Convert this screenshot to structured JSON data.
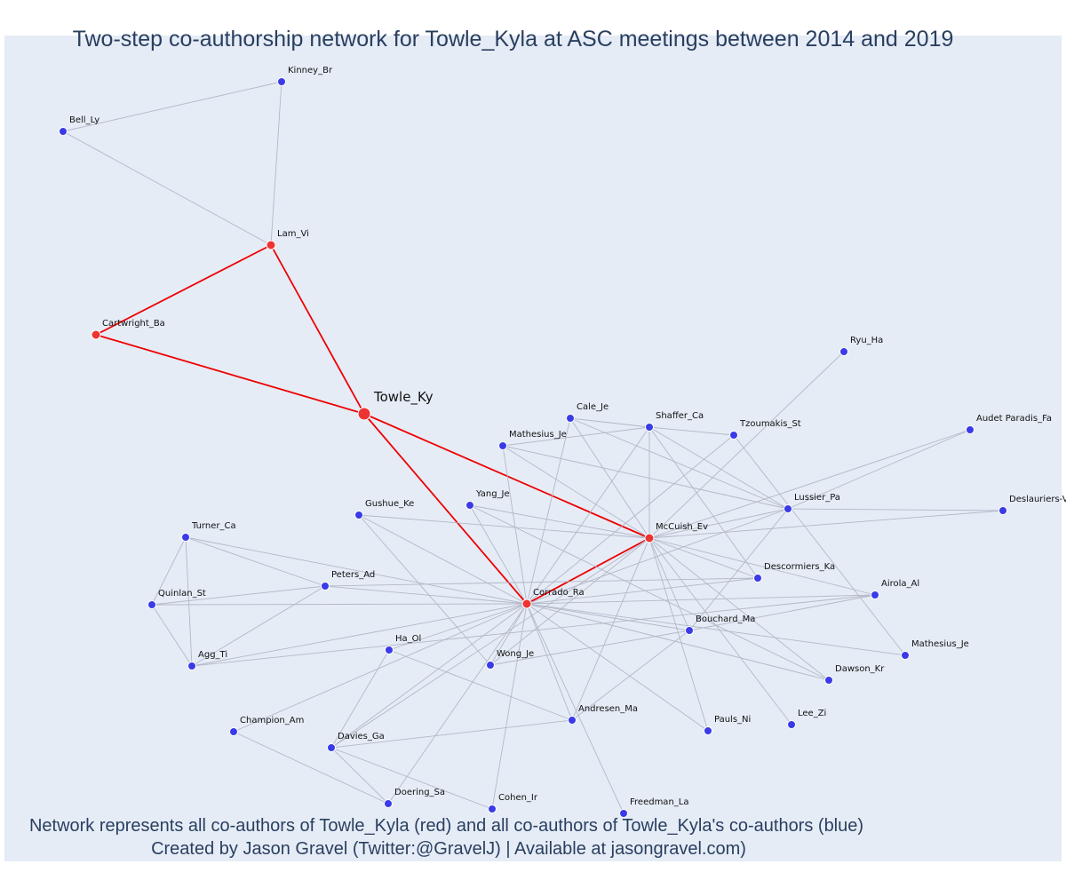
{
  "title": "Two-step co-authorship network for Towle_Kyla at ASC meetings between 2014 and 2019",
  "footer": {
    "line1": "Network represents all co-authors of Towle_Kyla (red) and all co-authors of Towle_Kyla's co-authors (blue)",
    "line2": "Created by Jason Gravel (Twitter:@GravelJ) | Available at jasongravel.com)"
  },
  "colors": {
    "background": "#e5ecf6",
    "direct_node": "#ee3333",
    "indirect_node": "#3a3ae8",
    "direct_edge": "#ee0000",
    "indirect_edge": "#b4b8c8",
    "text": "#2a3f5f"
  },
  "network": {
    "focal": "Towle_Ky",
    "nodes": [
      {
        "id": "Towle_Ky",
        "label": "Towle_Ky",
        "group": "focal"
      },
      {
        "id": "Lam_Vi",
        "label": "Lam_Vi",
        "group": "direct"
      },
      {
        "id": "Cartwright_Ba",
        "label": "Cartwright_Ba",
        "group": "direct"
      },
      {
        "id": "McCuish_Ev",
        "label": "McCuish_Ev",
        "group": "direct"
      },
      {
        "id": "Corrado_Ra",
        "label": "Corrado_Ra",
        "group": "direct"
      },
      {
        "id": "Kinney_Br",
        "label": "Kinney_Br",
        "group": "indirect"
      },
      {
        "id": "Bell_Ly",
        "label": "Bell_Ly",
        "group": "indirect"
      },
      {
        "id": "Ryu_Ha",
        "label": "Ryu_Ha",
        "group": "indirect"
      },
      {
        "id": "Cale_Je",
        "label": "Cale_Je",
        "group": "indirect"
      },
      {
        "id": "Shaffer_Ca",
        "label": "Shaffer_Ca",
        "group": "indirect"
      },
      {
        "id": "Tzoumakis_St",
        "label": "Tzoumakis_St",
        "group": "indirect"
      },
      {
        "id": "Audet_Paradis_Fa",
        "label": "Audet Paradis_Fa",
        "group": "indirect"
      },
      {
        "id": "Mathesius_Je_1",
        "label": "Mathesius_Je",
        "group": "indirect"
      },
      {
        "id": "Lussier_Pa",
        "label": "Lussier_Pa",
        "group": "indirect"
      },
      {
        "id": "Deslauriers_V",
        "label": "Deslauriers-V",
        "group": "indirect"
      },
      {
        "id": "Yang_Je",
        "label": "Yang_Je",
        "group": "indirect"
      },
      {
        "id": "Gushue_Ke",
        "label": "Gushue_Ke",
        "group": "indirect"
      },
      {
        "id": "Turner_Ca",
        "label": "Turner_Ca",
        "group": "indirect"
      },
      {
        "id": "Peters_Ad",
        "label": "Peters_Ad",
        "group": "indirect"
      },
      {
        "id": "Descormiers_Ka",
        "label": "Descormiers_Ka",
        "group": "indirect"
      },
      {
        "id": "Airola_Al",
        "label": "Airola_Al",
        "group": "indirect"
      },
      {
        "id": "Quinlan_St",
        "label": "Quinlan_St",
        "group": "indirect"
      },
      {
        "id": "Bouchard_Ma",
        "label": "Bouchard_Ma",
        "group": "indirect"
      },
      {
        "id": "Agg_Ti",
        "label": "Agg_Ti",
        "group": "indirect"
      },
      {
        "id": "Ha_Ol",
        "label": "Ha_Ol",
        "group": "indirect"
      },
      {
        "id": "Wong_Je",
        "label": "Wong_Je",
        "group": "indirect"
      },
      {
        "id": "Mathesius_Je_2",
        "label": "Mathesius_Je",
        "group": "indirect"
      },
      {
        "id": "Dawson_Kr",
        "label": "Dawson_Kr",
        "group": "indirect"
      },
      {
        "id": "Champion_Am",
        "label": "Champion_Am",
        "group": "indirect"
      },
      {
        "id": "Andresen_Ma",
        "label": "Andresen_Ma",
        "group": "indirect"
      },
      {
        "id": "Pauls_Ni",
        "label": "Pauls_Ni",
        "group": "indirect"
      },
      {
        "id": "Lee_Zi",
        "label": "Lee_Zi",
        "group": "indirect"
      },
      {
        "id": "Davies_Ga",
        "label": "Davies_Ga",
        "group": "indirect"
      },
      {
        "id": "Doering_Sa",
        "label": "Doering_Sa",
        "group": "indirect"
      },
      {
        "id": "Cohen_Ir",
        "label": "Cohen_Ir",
        "group": "indirect"
      },
      {
        "id": "Freedman_La",
        "label": "Freedman_La",
        "group": "indirect"
      }
    ],
    "edges": [
      [
        "Towle_Ky",
        "Cartwright_Ba"
      ],
      [
        "Towle_Ky",
        "Lam_Vi"
      ],
      [
        "Cartwright_Ba",
        "Lam_Vi"
      ],
      [
        "Towle_Ky",
        "McCuish_Ev"
      ],
      [
        "Towle_Ky",
        "Corrado_Ra"
      ],
      [
        "Corrado_Ra",
        "McCuish_Ev"
      ],
      [
        "Lam_Vi",
        "Kinney_Br"
      ],
      [
        "Lam_Vi",
        "Bell_Ly"
      ],
      [
        "Bell_Ly",
        "Kinney_Br"
      ],
      [
        "McCuish_Ev",
        "Ryu_Ha"
      ],
      [
        "McCuish_Ev",
        "Cale_Je"
      ],
      [
        "McCuish_Ev",
        "Shaffer_Ca"
      ],
      [
        "McCuish_Ev",
        "Audet_Paradis_Fa"
      ],
      [
        "McCuish_Ev",
        "Mathesius_Je_1"
      ],
      [
        "McCuish_Ev",
        "Lussier_Pa"
      ],
      [
        "McCuish_Ev",
        "Deslauriers_V"
      ],
      [
        "McCuish_Ev",
        "Yang_Je"
      ],
      [
        "McCuish_Ev",
        "Gushue_Ke"
      ],
      [
        "McCuish_Ev",
        "Descormiers_Ka"
      ],
      [
        "McCuish_Ev",
        "Airola_Al"
      ],
      [
        "McCuish_Ev",
        "Bouchard_Ma"
      ],
      [
        "McCuish_Ev",
        "Dawson_Kr"
      ],
      [
        "McCuish_Ev",
        "Pauls_Ni"
      ],
      [
        "McCuish_Ev",
        "Lee_Zi"
      ],
      [
        "McCuish_Ev",
        "Andresen_Ma"
      ],
      [
        "McCuish_Ev",
        "Wong_Je"
      ],
      [
        "McCuish_Ev",
        "Davies_Ga"
      ],
      [
        "Corrado_Ra",
        "Cale_Je"
      ],
      [
        "Corrado_Ra",
        "Shaffer_Ca"
      ],
      [
        "Corrado_Ra",
        "Tzoumakis_St"
      ],
      [
        "Corrado_Ra",
        "Lussier_Pa"
      ],
      [
        "Corrado_Ra",
        "Mathesius_Je_1"
      ],
      [
        "Corrado_Ra",
        "Yang_Je"
      ],
      [
        "Corrado_Ra",
        "Gushue_Ke"
      ],
      [
        "Corrado_Ra",
        "Peters_Ad"
      ],
      [
        "Corrado_Ra",
        "Turner_Ca"
      ],
      [
        "Corrado_Ra",
        "Quinlan_St"
      ],
      [
        "Corrado_Ra",
        "Agg_Ti"
      ],
      [
        "Corrado_Ra",
        "Descormiers_Ka"
      ],
      [
        "Corrado_Ra",
        "Airola_Al"
      ],
      [
        "Corrado_Ra",
        "Bouchard_Ma"
      ],
      [
        "Corrado_Ra",
        "Mathesius_Je_2"
      ],
      [
        "Corrado_Ra",
        "Dawson_Kr"
      ],
      [
        "Corrado_Ra",
        "Pauls_Ni"
      ],
      [
        "Corrado_Ra",
        "Andresen_Ma"
      ],
      [
        "Corrado_Ra",
        "Wong_Je"
      ],
      [
        "Corrado_Ra",
        "Ha_Ol"
      ],
      [
        "Corrado_Ra",
        "Champion_Am"
      ],
      [
        "Corrado_Ra",
        "Davies_Ga"
      ],
      [
        "Corrado_Ra",
        "Doering_Sa"
      ],
      [
        "Corrado_Ra",
        "Cohen_Ir"
      ],
      [
        "Corrado_Ra",
        "Freedman_La"
      ],
      [
        "Cale_Je",
        "Shaffer_Ca"
      ],
      [
        "Cale_Je",
        "Lussier_Pa"
      ],
      [
        "Shaffer_Ca",
        "Tzoumakis_St"
      ],
      [
        "Shaffer_Ca",
        "Lussier_Pa"
      ],
      [
        "Shaffer_Ca",
        "Mathesius_Je_1"
      ],
      [
        "Shaffer_Ca",
        "Descormiers_Ka"
      ],
      [
        "Mathesius_Je_1",
        "Lussier_Pa"
      ],
      [
        "Tzoumakis_St",
        "Mathesius_Je_2"
      ],
      [
        "Lussier_Pa",
        "Audet_Paradis_Fa"
      ],
      [
        "Lussier_Pa",
        "Deslauriers_V"
      ],
      [
        "Lussier_Pa",
        "Bouchard_Ma"
      ],
      [
        "Gushue_Ke",
        "Wong_Je"
      ],
      [
        "Yang_Je",
        "Dawson_Kr"
      ],
      [
        "Turner_Ca",
        "Quinlan_St"
      ],
      [
        "Turner_Ca",
        "Agg_Ti"
      ],
      [
        "Turner_Ca",
        "Peters_Ad"
      ],
      [
        "Quinlan_St",
        "Agg_Ti"
      ],
      [
        "Peters_Ad",
        "Agg_Ti"
      ],
      [
        "Peters_Ad",
        "Quinlan_St"
      ],
      [
        "Peters_Ad",
        "Descormiers_Ka"
      ],
      [
        "Agg_Ti",
        "Airola_Al"
      ],
      [
        "Wong_Je",
        "Bouchard_Ma"
      ],
      [
        "Bouchard_Ma",
        "Airola_Al"
      ],
      [
        "Bouchard_Ma",
        "Andresen_Ma"
      ],
      [
        "Ha_Ol",
        "Andresen_Ma"
      ],
      [
        "Ha_Ol",
        "Davies_Ga"
      ],
      [
        "Davies_Ga",
        "Andresen_Ma"
      ],
      [
        "Davies_Ga",
        "Doering_Sa"
      ],
      [
        "Davies_Ga",
        "Cohen_Ir"
      ],
      [
        "Champion_Am",
        "Doering_Sa"
      ]
    ]
  }
}
